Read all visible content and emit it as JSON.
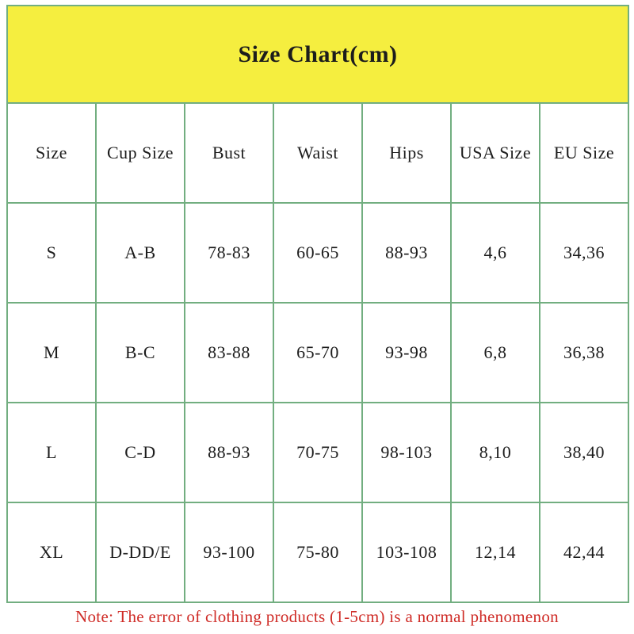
{
  "title": "Size Chart(cm)",
  "chart_data": {
    "type": "table",
    "title": "Size Chart(cm)",
    "unit": "cm",
    "columns": [
      "Size",
      "Cup Size",
      "Bust",
      "Waist",
      "Hips",
      "USA Size",
      "EU Size"
    ],
    "rows": [
      [
        "S",
        "A-B",
        "78-83",
        "60-65",
        "88-93",
        "4,6",
        "34,36"
      ],
      [
        "M",
        "B-C",
        "83-88",
        "65-70",
        "93-98",
        "6,8",
        "36,38"
      ],
      [
        "L",
        "C-D",
        "88-93",
        "70-75",
        "98-103",
        "8,10",
        "38,40"
      ],
      [
        "XL",
        "D-DD/E",
        "93-100",
        "75-80",
        "103-108",
        "12,14",
        "42,44"
      ]
    ]
  },
  "note": "Note: The error of clothing products (1-5cm) is a normal phenomenon",
  "colors": {
    "banner_yellow": "#F5EE3F",
    "grid_green": "#72AE80",
    "note_red": "#CF2B26",
    "text_black": "#1C1C1C",
    "background": "#FFFFFF"
  }
}
